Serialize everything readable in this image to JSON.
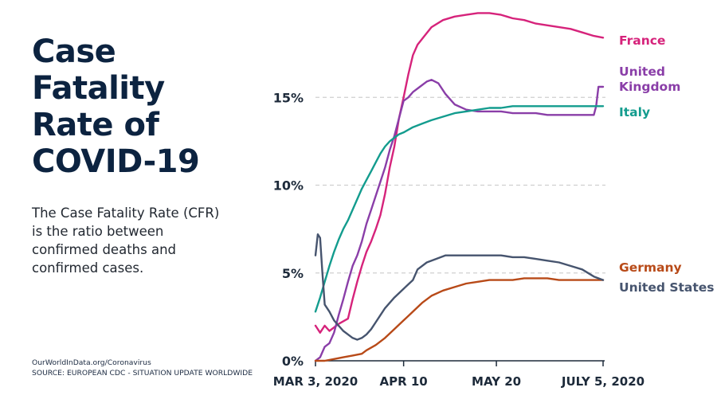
{
  "title_lines": [
    "Case",
    "Fatality",
    "Rate of",
    "COVID-19"
  ],
  "description": "The Case Fatality Rate (CFR) is the ratio between confirmed deaths and confirmed cases.",
  "source_lines": [
    "OurWorldInData.org/Coronavirus",
    "SOURCE: EUROPEAN CDC - SITUATION UPDATE WORLDWIDE"
  ],
  "colors": {
    "France": "#d6237b",
    "United Kingdom": "#8a3ea8",
    "Italy": "#139c8e",
    "Germany": "#b84a18",
    "United States": "#46546e",
    "grid": "#cfcfcf",
    "axis": "#1d2a3a"
  },
  "chart_data": {
    "type": "line",
    "title": "Case Fatality Rate of COVID-19",
    "xlabel": "",
    "ylabel": "",
    "unit": "%",
    "xlim": [
      0,
      124
    ],
    "ylim": [
      0,
      20
    ],
    "x_ticks": [
      {
        "day": 0,
        "label": "MAR 3, 2020"
      },
      {
        "day": 38,
        "label": "APR 10"
      },
      {
        "day": 78,
        "label": "MAY 20"
      },
      {
        "day": 124,
        "label": "JULY 5, 2020"
      }
    ],
    "y_ticks": [
      {
        "value": 0,
        "label": "0%"
      },
      {
        "value": 5,
        "label": "5%"
      },
      {
        "value": 10,
        "label": "10%"
      },
      {
        "value": 15,
        "label": "15%"
      }
    ],
    "grid": true,
    "series": [
      {
        "name": "France",
        "label_lines": [
          "France"
        ],
        "points": [
          [
            0,
            2.0
          ],
          [
            2,
            1.6
          ],
          [
            4,
            2.0
          ],
          [
            6,
            1.7
          ],
          [
            10,
            2.1
          ],
          [
            14,
            2.4
          ],
          [
            16,
            3.5
          ],
          [
            18,
            4.5
          ],
          [
            20,
            5.4
          ],
          [
            22,
            6.2
          ],
          [
            24,
            6.8
          ],
          [
            26,
            7.5
          ],
          [
            28,
            8.3
          ],
          [
            30,
            9.5
          ],
          [
            32,
            11.0
          ],
          [
            34,
            12.2
          ],
          [
            36,
            13.8
          ],
          [
            38,
            15.0
          ],
          [
            40,
            16.3
          ],
          [
            42,
            17.4
          ],
          [
            44,
            18.0
          ],
          [
            47,
            18.5
          ],
          [
            50,
            19.0
          ],
          [
            55,
            19.4
          ],
          [
            60,
            19.6
          ],
          [
            65,
            19.7
          ],
          [
            70,
            19.8
          ],
          [
            75,
            19.8
          ],
          [
            80,
            19.7
          ],
          [
            85,
            19.5
          ],
          [
            90,
            19.4
          ],
          [
            95,
            19.2
          ],
          [
            100,
            19.1
          ],
          [
            105,
            19.0
          ],
          [
            110,
            18.9
          ],
          [
            115,
            18.7
          ],
          [
            120,
            18.5
          ],
          [
            124,
            18.4
          ]
        ]
      },
      {
        "name": "United Kingdom",
        "label_lines": [
          "United",
          "Kingdom"
        ],
        "points": [
          [
            0,
            0
          ],
          [
            2,
            0.2
          ],
          [
            4,
            0.8
          ],
          [
            6,
            1.0
          ],
          [
            8,
            1.6
          ],
          [
            10,
            2.6
          ],
          [
            12,
            3.5
          ],
          [
            14,
            4.5
          ],
          [
            16,
            5.4
          ],
          [
            18,
            6.0
          ],
          [
            20,
            6.8
          ],
          [
            22,
            7.8
          ],
          [
            24,
            8.6
          ],
          [
            26,
            9.4
          ],
          [
            28,
            10.2
          ],
          [
            30,
            11.0
          ],
          [
            32,
            12.0
          ],
          [
            34,
            12.8
          ],
          [
            36,
            13.8
          ],
          [
            38,
            14.8
          ],
          [
            40,
            15.0
          ],
          [
            42,
            15.3
          ],
          [
            45,
            15.6
          ],
          [
            48,
            15.9
          ],
          [
            50,
            16.0
          ],
          [
            53,
            15.8
          ],
          [
            56,
            15.2
          ],
          [
            60,
            14.6
          ],
          [
            65,
            14.3
          ],
          [
            70,
            14.2
          ],
          [
            75,
            14.2
          ],
          [
            80,
            14.2
          ],
          [
            85,
            14.1
          ],
          [
            90,
            14.1
          ],
          [
            95,
            14.1
          ],
          [
            100,
            14.0
          ],
          [
            105,
            14.0
          ],
          [
            110,
            14.0
          ],
          [
            115,
            14.0
          ],
          [
            120,
            14.0
          ],
          [
            121,
            14.5
          ],
          [
            122,
            15.6
          ],
          [
            124,
            15.6
          ]
        ]
      },
      {
        "name": "Italy",
        "label_lines": [
          "Italy"
        ],
        "points": [
          [
            0,
            2.8
          ],
          [
            2,
            3.6
          ],
          [
            4,
            4.5
          ],
          [
            6,
            5.4
          ],
          [
            8,
            6.2
          ],
          [
            10,
            6.9
          ],
          [
            12,
            7.5
          ],
          [
            14,
            8.0
          ],
          [
            16,
            8.6
          ],
          [
            18,
            9.2
          ],
          [
            20,
            9.8
          ],
          [
            22,
            10.3
          ],
          [
            24,
            10.8
          ],
          [
            26,
            11.3
          ],
          [
            28,
            11.8
          ],
          [
            30,
            12.2
          ],
          [
            32,
            12.5
          ],
          [
            34,
            12.7
          ],
          [
            36,
            12.9
          ],
          [
            38,
            13.0
          ],
          [
            42,
            13.3
          ],
          [
            46,
            13.5
          ],
          [
            50,
            13.7
          ],
          [
            55,
            13.9
          ],
          [
            60,
            14.1
          ],
          [
            65,
            14.2
          ],
          [
            70,
            14.3
          ],
          [
            75,
            14.4
          ],
          [
            80,
            14.4
          ],
          [
            85,
            14.5
          ],
          [
            90,
            14.5
          ],
          [
            95,
            14.5
          ],
          [
            100,
            14.5
          ],
          [
            105,
            14.5
          ],
          [
            110,
            14.5
          ],
          [
            115,
            14.5
          ],
          [
            120,
            14.5
          ],
          [
            124,
            14.5
          ]
        ]
      },
      {
        "name": "Germany",
        "label_lines": [
          "Germany"
        ],
        "points": [
          [
            0,
            0
          ],
          [
            4,
            0
          ],
          [
            8,
            0.1
          ],
          [
            12,
            0.2
          ],
          [
            16,
            0.3
          ],
          [
            20,
            0.4
          ],
          [
            22,
            0.6
          ],
          [
            26,
            0.9
          ],
          [
            30,
            1.3
          ],
          [
            34,
            1.8
          ],
          [
            38,
            2.3
          ],
          [
            42,
            2.8
          ],
          [
            46,
            3.3
          ],
          [
            50,
            3.7
          ],
          [
            55,
            4.0
          ],
          [
            60,
            4.2
          ],
          [
            65,
            4.4
          ],
          [
            70,
            4.5
          ],
          [
            75,
            4.6
          ],
          [
            80,
            4.6
          ],
          [
            85,
            4.6
          ],
          [
            90,
            4.7
          ],
          [
            95,
            4.7
          ],
          [
            100,
            4.7
          ],
          [
            105,
            4.6
          ],
          [
            110,
            4.6
          ],
          [
            115,
            4.6
          ],
          [
            120,
            4.6
          ],
          [
            124,
            4.6
          ]
        ]
      },
      {
        "name": "United States",
        "label_lines": [
          "United States"
        ],
        "points": [
          [
            0,
            6.0
          ],
          [
            1,
            7.2
          ],
          [
            2,
            7.0
          ],
          [
            3,
            5.0
          ],
          [
            4,
            3.2
          ],
          [
            6,
            2.8
          ],
          [
            8,
            2.3
          ],
          [
            10,
            2.0
          ],
          [
            12,
            1.7
          ],
          [
            14,
            1.5
          ],
          [
            16,
            1.3
          ],
          [
            18,
            1.2
          ],
          [
            20,
            1.3
          ],
          [
            22,
            1.5
          ],
          [
            24,
            1.8
          ],
          [
            26,
            2.2
          ],
          [
            28,
            2.6
          ],
          [
            30,
            3.0
          ],
          [
            34,
            3.6
          ],
          [
            38,
            4.1
          ],
          [
            42,
            4.6
          ],
          [
            44,
            5.2
          ],
          [
            48,
            5.6
          ],
          [
            52,
            5.8
          ],
          [
            56,
            6.0
          ],
          [
            60,
            6.0
          ],
          [
            65,
            6.0
          ],
          [
            70,
            6.0
          ],
          [
            75,
            6.0
          ],
          [
            80,
            6.0
          ],
          [
            85,
            5.9
          ],
          [
            90,
            5.9
          ],
          [
            95,
            5.8
          ],
          [
            100,
            5.7
          ],
          [
            105,
            5.6
          ],
          [
            110,
            5.4
          ],
          [
            115,
            5.2
          ],
          [
            120,
            4.8
          ],
          [
            124,
            4.6
          ]
        ]
      }
    ]
  }
}
